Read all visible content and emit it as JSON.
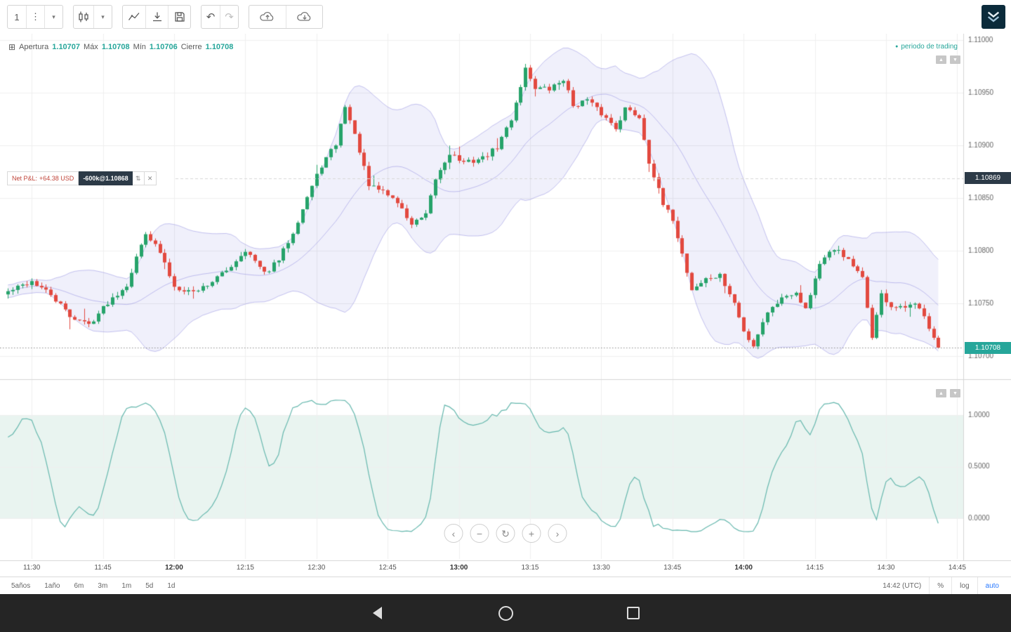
{
  "colors": {
    "accent_teal": "#26a69a",
    "up_candle": "#26a36a",
    "down_candle": "#e2493f",
    "band": "#6b67d8",
    "oscillator_line": "#66b8ae",
    "oscillator_fill": "#e9f4f0",
    "grid": "#efefef",
    "axis_text": "#676767",
    "badge_dark": "#2c3a47",
    "last_badge_bg": "#26a69a",
    "auto_blue": "#2979ff",
    "pnl_text": "#c0453a",
    "logo_bg": "#0b2b3b"
  },
  "toolbar": {
    "interval": "1",
    "glyphs": {
      "menu": "⋮",
      "caret": "▾",
      "undo": "↶",
      "redo": "↷"
    }
  },
  "legend": {
    "expand_glyph": "⊞",
    "open_label": "Apertura",
    "open_value": "1.10707",
    "high_label": "Máx",
    "high_value": "1.10708",
    "low_label": "Mín",
    "low_value": "1.10706",
    "close_label": "Cierre",
    "close_value": "1.10708"
  },
  "series_legend": {
    "marker": "●",
    "label": "periodo de trading"
  },
  "position_widget": {
    "pnl_label": "Net P&L:",
    "pnl_value": "+64.38 USD",
    "badge": "-600k@1.10868",
    "reverse_glyph": "⇅",
    "close_glyph": "✕"
  },
  "pane_buttons": {
    "up": "▲",
    "down": "▼"
  },
  "nav_controls": {
    "pan_left": "‹",
    "zoom_out": "−",
    "reset": "↻",
    "zoom_in": "+",
    "pan_right": "›"
  },
  "price_axis": {
    "position_badge": "1.10869",
    "last_badge": "1.10708"
  },
  "bottom_bar": {
    "ranges": [
      "5años",
      "1año",
      "6m",
      "3m",
      "1m",
      "5d",
      "1d"
    ],
    "clock": "14:42 (UTC)",
    "percent": "%",
    "log": "log",
    "auto": "auto"
  },
  "chart_data": {
    "type": "candlestick",
    "interval": "1m",
    "session_start": "11:25",
    "candle_count": 197,
    "last_price": 1.10708,
    "position_price": 1.10869,
    "ohlc_legend": {
      "open": 1.10707,
      "high": 1.10708,
      "low": 1.10706,
      "close": 1.10708
    },
    "x_ticks": [
      "11:30",
      "11:45",
      "12:00",
      "12:15",
      "12:30",
      "12:45",
      "13:00",
      "13:15",
      "13:30",
      "13:45",
      "14:00",
      "14:15",
      "14:30",
      "14:45"
    ],
    "price_ticks": [
      {
        "v": 1.11,
        "label": "1.11000"
      },
      {
        "v": 1.1095,
        "label": "1.10950"
      },
      {
        "v": 1.109,
        "label": "1.10900"
      },
      {
        "v": 1.1085,
        "label": "1.10850"
      },
      {
        "v": 1.108,
        "label": "1.10800"
      },
      {
        "v": 1.1075,
        "label": "1.10750"
      },
      {
        "v": 1.107,
        "label": "1.10700"
      }
    ],
    "oscillator_ticks": [
      {
        "v": 1.0,
        "label": "1.0000"
      },
      {
        "v": 0.5,
        "label": "0.5000"
      },
      {
        "v": 0.0,
        "label": "0.0000"
      }
    ],
    "price_anchors": [
      [
        0,
        1.10761
      ],
      [
        5,
        1.10771
      ],
      [
        9,
        1.10758
      ],
      [
        13,
        1.10738
      ],
      [
        17,
        1.1073
      ],
      [
        21,
        1.10751
      ],
      [
        25,
        1.10768
      ],
      [
        29,
        1.10818
      ],
      [
        32,
        1.10798
      ],
      [
        35,
        1.10766
      ],
      [
        39,
        1.10761
      ],
      [
        42,
        1.10768
      ],
      [
        46,
        1.10781
      ],
      [
        50,
        1.10801
      ],
      [
        54,
        1.10778
      ],
      [
        57,
        1.10791
      ],
      [
        60,
        1.10818
      ],
      [
        63,
        1.10851
      ],
      [
        66,
        1.10881
      ],
      [
        69,
        1.10901
      ],
      [
        71,
        1.10938
      ],
      [
        74,
        1.10895
      ],
      [
        76,
        1.10861
      ],
      [
        79,
        1.10857
      ],
      [
        82,
        1.10846
      ],
      [
        85,
        1.10825
      ],
      [
        88,
        1.10833
      ],
      [
        90,
        1.10868
      ],
      [
        93,
        1.10893
      ],
      [
        96,
        1.10883
      ],
      [
        100,
        1.10888
      ],
      [
        103,
        1.10898
      ],
      [
        106,
        1.10925
      ],
      [
        109,
        1.10973
      ],
      [
        111,
        1.10955
      ],
      [
        114,
        1.10953
      ],
      [
        117,
        1.10963
      ],
      [
        119,
        1.10938
      ],
      [
        122,
        1.10943
      ],
      [
        125,
        1.1093
      ],
      [
        128,
        1.10917
      ],
      [
        130,
        1.10935
      ],
      [
        133,
        1.10927
      ],
      [
        135,
        1.10885
      ],
      [
        138,
        1.10843
      ],
      [
        140,
        1.1083
      ],
      [
        142,
        1.10797
      ],
      [
        144,
        1.10763
      ],
      [
        147,
        1.10773
      ],
      [
        150,
        1.10776
      ],
      [
        153,
        1.1075
      ],
      [
        155,
        1.10723
      ],
      [
        157,
        1.1071
      ],
      [
        159,
        1.10733
      ],
      [
        161,
        1.10748
      ],
      [
        164,
        1.10758
      ],
      [
        166,
        1.10761
      ],
      [
        168,
        1.10745
      ],
      [
        171,
        1.10788
      ],
      [
        173,
        1.10797
      ],
      [
        175,
        1.10801
      ],
      [
        178,
        1.10785
      ],
      [
        180,
        1.10773
      ],
      [
        182,
        1.10719
      ],
      [
        184,
        1.10758
      ],
      [
        186,
        1.10747
      ],
      [
        188,
        1.10745
      ],
      [
        191,
        1.10748
      ],
      [
        193,
        1.1074
      ],
      [
        194,
        1.10728
      ],
      [
        196,
        1.1071
      ],
      [
        197,
        1.10708
      ]
    ],
    "band": {
      "type": "bollinger",
      "period": 20,
      "stddev_mult": 2
    },
    "oscillator": {
      "type": "stochastic",
      "period": 14,
      "smooth": 3,
      "scale": 1.3,
      "offset": -0.15,
      "levels": [
        1.0,
        0.5,
        0.0
      ]
    }
  }
}
